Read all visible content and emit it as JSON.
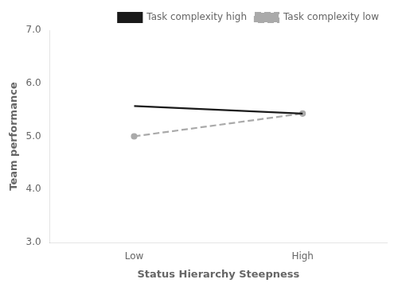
{
  "chart_data": {
    "type": "line",
    "categories": [
      "Low",
      "High"
    ],
    "x_label": "Status Hierarchy Steepness",
    "y_label": "Team performance",
    "series": [
      {
        "name": "Task complexity high",
        "color": "#1a1a1a",
        "line_style": "solid",
        "values": [
          5.57,
          5.43
        ]
      },
      {
        "name": "Task complexity low",
        "color": "#aaaaaa",
        "line_style": "dashed",
        "marker": "circle",
        "values": [
          5.0,
          5.43
        ]
      }
    ],
    "ylim": [
      3.0,
      7.0
    ],
    "yticks": [
      {
        "value": 3.0,
        "label": "3.0"
      },
      {
        "value": 4.0,
        "label": "4.0"
      },
      {
        "value": 5.0,
        "label": "5.0"
      },
      {
        "value": 6.0,
        "label": "6.0"
      },
      {
        "value": 7.0,
        "label": "7.0"
      }
    ],
    "grid": false,
    "legend": "upper right"
  }
}
